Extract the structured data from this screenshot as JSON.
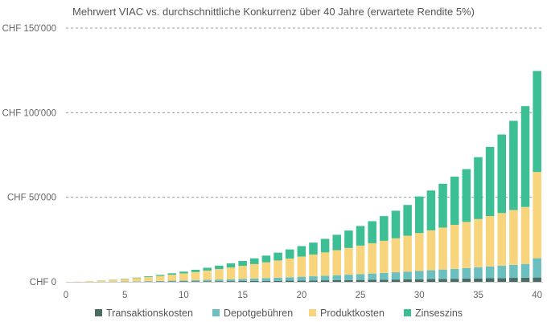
{
  "chart_data": {
    "type": "bar",
    "stacked": true,
    "title": "Mehrwert VIAC vs. durchschnittliche Konkurrenz über 40 Jahre (erwartete Rendite 5%)",
    "xlabel": "",
    "ylabel": "",
    "x": [
      1,
      2,
      3,
      4,
      5,
      6,
      7,
      8,
      9,
      10,
      11,
      12,
      13,
      14,
      15,
      16,
      17,
      18,
      19,
      20,
      21,
      22,
      23,
      24,
      25,
      26,
      27,
      28,
      29,
      30,
      31,
      32,
      33,
      34,
      35,
      36,
      37,
      38,
      39,
      40
    ],
    "x_ticks": [
      0,
      5,
      10,
      15,
      20,
      25,
      30,
      35,
      40
    ],
    "x_tick_labels": [
      "0",
      "5",
      "10",
      "15",
      "20",
      "25",
      "30",
      "35",
      "40"
    ],
    "xlim": [
      0,
      40.5
    ],
    "ylim": [
      0,
      150000
    ],
    "y_ticks": [
      0,
      50000,
      100000,
      150000
    ],
    "y_tick_labels": [
      "CHF 0",
      "CHF 50'000",
      "CHF 100'000",
      "CHF 150'000"
    ],
    "grid": true,
    "legend_position": "bottom",
    "series": [
      {
        "name": "Transaktionskosten",
        "color": "#4a6b62",
        "values": [
          5,
          15,
          30,
          50,
          75,
          100,
          130,
          165,
          200,
          240,
          280,
          325,
          370,
          420,
          470,
          525,
          580,
          640,
          700,
          765,
          830,
          900,
          970,
          1045,
          1120,
          1200,
          1280,
          1365,
          1450,
          1540,
          1630,
          1725,
          1820,
          1920,
          2020,
          2125,
          2230,
          2340,
          2450,
          2560
        ]
      },
      {
        "name": "Depotgebühren",
        "color": "#6bbfbf",
        "values": [
          10,
          30,
          60,
          100,
          150,
          220,
          300,
          390,
          490,
          600,
          720,
          850,
          990,
          1140,
          1300,
          1470,
          1650,
          1840,
          2040,
          2250,
          2470,
          2700,
          2940,
          3190,
          3450,
          3720,
          4000,
          4290,
          4590,
          4900,
          5220,
          5550,
          5890,
          6240,
          6600,
          6970,
          7350,
          7740,
          8140,
          11400
        ]
      },
      {
        "name": "Produktkosten",
        "color": "#f8d47c",
        "values": [
          150,
          400,
          700,
          1050,
          1450,
          1900,
          2400,
          2950,
          3550,
          4150,
          4800,
          5500,
          6200,
          6950,
          7700,
          8500,
          9300,
          10150,
          11050,
          11950,
          12850,
          13800,
          14800,
          15800,
          16850,
          17900,
          19000,
          20100,
          21250,
          22400,
          23600,
          24800,
          26000,
          27250,
          28500,
          29800,
          31100,
          32400,
          33700,
          51000
        ]
      },
      {
        "name": "Zinseszins",
        "color": "#3cbf94",
        "values": [
          0,
          20,
          60,
          120,
          200,
          310,
          450,
          620,
          820,
          1060,
          1340,
          1660,
          2020,
          2430,
          2890,
          3410,
          3990,
          4640,
          5360,
          6160,
          7050,
          8030,
          9110,
          10300,
          11600,
          13030,
          14590,
          16300,
          18160,
          21650,
          23550,
          25930,
          28490,
          31240,
          36580,
          40900,
          46420,
          52720,
          59600,
          59700
        ]
      }
    ]
  }
}
